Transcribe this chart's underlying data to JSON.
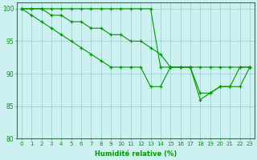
{
  "title": "",
  "xlabel": "Humidité relative (%)",
  "ylabel": "",
  "background_color": "#cdf0f0",
  "line_color": "#009900",
  "grid_color": "#99cccc",
  "xlim": [
    -0.5,
    23.5
  ],
  "ylim": [
    80,
    101
  ],
  "yticks": [
    80,
    85,
    90,
    95,
    100
  ],
  "xticks": [
    0,
    1,
    2,
    3,
    4,
    5,
    6,
    7,
    8,
    9,
    10,
    11,
    12,
    13,
    14,
    15,
    16,
    17,
    18,
    19,
    20,
    21,
    22,
    23
  ],
  "series": [
    [
      100,
      100,
      100,
      100,
      100,
      100,
      100,
      100,
      100,
      100,
      100,
      100,
      100,
      100,
      91,
      91,
      91,
      91,
      91,
      91,
      91,
      91,
      91,
      91
    ],
    [
      100,
      100,
      100,
      99,
      99,
      98,
      98,
      97,
      97,
      96,
      96,
      95,
      95,
      94,
      93,
      91,
      91,
      91,
      87,
      87,
      88,
      88,
      91,
      91
    ],
    [
      100,
      99,
      98,
      97,
      96,
      95,
      94,
      93,
      92,
      91,
      91,
      91,
      91,
      88,
      88,
      91,
      91,
      91,
      86,
      87,
      88,
      88,
      88,
      91
    ]
  ]
}
